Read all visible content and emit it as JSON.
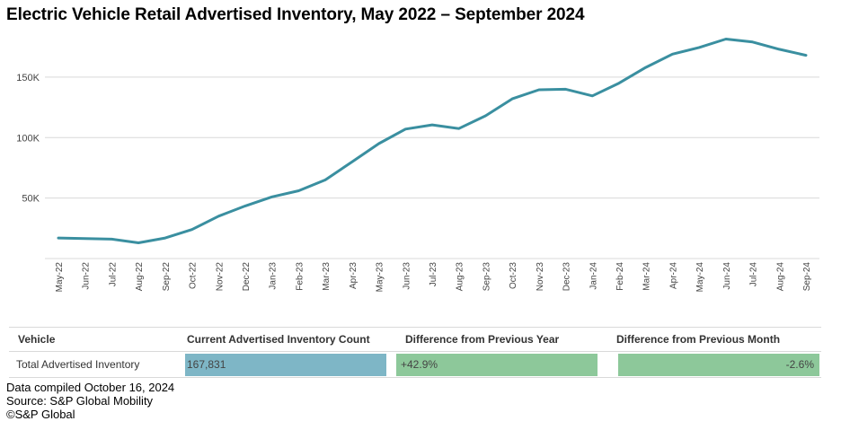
{
  "title": "Electric Vehicle Retail Advertised Inventory, May 2022 – September 2024",
  "chart_data": {
    "type": "line",
    "title": "Electric Vehicle Retail Advertised Inventory, May 2022 – September 2024",
    "xlabel": "",
    "ylabel": "",
    "ylim": [
      0,
      190000
    ],
    "yticks": [
      50000,
      100000,
      150000
    ],
    "ytick_labels": [
      "50K",
      "100K",
      "150K"
    ],
    "grid": true,
    "line_color": "#3a8fa0",
    "categories": [
      "May-22",
      "Jun-22",
      "Jul-22",
      "Aug-22",
      "Sep-22",
      "Oct-22",
      "Nov-22",
      "Dec-22",
      "Jan-23",
      "Feb-23",
      "Mar-23",
      "Apr-23",
      "May-23",
      "Jun-23",
      "Jul-23",
      "Aug-23",
      "Sep-23",
      "Oct-23",
      "Nov-23",
      "Dec-23",
      "Jan-24",
      "Feb-24",
      "Mar-24",
      "Apr-24",
      "May-24",
      "Jun-24",
      "Jul-24",
      "Aug-24",
      "Sep-24"
    ],
    "values": [
      17000,
      16500,
      16000,
      13000,
      17000,
      24000,
      35000,
      43500,
      51000,
      56000,
      65000,
      80000,
      95000,
      107000,
      110500,
      107500,
      118000,
      132000,
      139500,
      140000,
      134500,
      145000,
      158000,
      169000,
      174500,
      181500,
      179000,
      173000,
      168000
    ]
  },
  "table": {
    "headers": {
      "vehicle": "Vehicle",
      "count": "Current Advertised Inventory Count",
      "year": "Difference from Previous Year",
      "month": "Difference from Previous Month"
    },
    "row": {
      "label": "Total Advertised Inventory",
      "count": "167,831",
      "year": "+42.9%",
      "month": "-2.6%",
      "count_color": "#7eb6c6",
      "change_color": "#8dc89a"
    }
  },
  "footer": {
    "compiled": "Data compiled October 16, 2024",
    "source": "Source: S&P Global Mobility",
    "copyright": "©S&P Global"
  }
}
